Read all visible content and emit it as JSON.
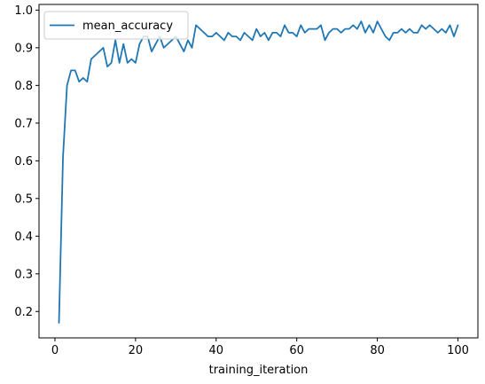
{
  "chart_data": {
    "type": "line",
    "title": "",
    "xlabel": "training_iteration",
    "ylabel": "",
    "xlim": [
      -3.95,
      104.95
    ],
    "ylim": [
      0.13,
      1.015
    ],
    "xticks": [
      0,
      20,
      40,
      60,
      80,
      100
    ],
    "yticks": [
      0.2,
      0.3,
      0.4,
      0.5,
      0.6,
      0.7,
      0.8,
      0.9,
      1.0
    ],
    "ytick_labels": [
      "0.2",
      "0.3",
      "0.4",
      "0.5",
      "0.6",
      "0.7",
      "0.8",
      "0.9",
      "1.0"
    ],
    "xtick_labels": [
      "0",
      "20",
      "40",
      "60",
      "80",
      "100"
    ],
    "grid": false,
    "legend": "top-left",
    "series": [
      {
        "name": "mean_accuracy",
        "color": "#1f77b4",
        "x": [
          1,
          2,
          3,
          4,
          5,
          6,
          7,
          8,
          9,
          10,
          11,
          12,
          13,
          14,
          15,
          16,
          17,
          18,
          19,
          20,
          21,
          22,
          23,
          24,
          25,
          26,
          27,
          28,
          29,
          30,
          31,
          32,
          33,
          34,
          35,
          36,
          37,
          38,
          39,
          40,
          41,
          42,
          43,
          44,
          45,
          46,
          47,
          48,
          49,
          50,
          51,
          52,
          53,
          54,
          55,
          56,
          57,
          58,
          59,
          60,
          61,
          62,
          63,
          64,
          65,
          66,
          67,
          68,
          69,
          70,
          71,
          72,
          73,
          74,
          75,
          76,
          77,
          78,
          79,
          80,
          81,
          82,
          83,
          84,
          85,
          86,
          87,
          88,
          89,
          90,
          91,
          92,
          93,
          94,
          95,
          96,
          97,
          98,
          99,
          100
        ],
        "values": [
          0.17,
          0.61,
          0.8,
          0.84,
          0.84,
          0.81,
          0.82,
          0.81,
          0.87,
          0.88,
          0.89,
          0.9,
          0.85,
          0.86,
          0.92,
          0.86,
          0.91,
          0.86,
          0.87,
          0.86,
          0.91,
          0.93,
          0.93,
          0.89,
          0.91,
          0.93,
          0.9,
          0.91,
          0.92,
          0.93,
          0.91,
          0.89,
          0.92,
          0.9,
          0.96,
          0.95,
          0.94,
          0.93,
          0.93,
          0.94,
          0.93,
          0.92,
          0.94,
          0.93,
          0.93,
          0.92,
          0.94,
          0.93,
          0.92,
          0.95,
          0.93,
          0.94,
          0.92,
          0.94,
          0.94,
          0.93,
          0.96,
          0.94,
          0.94,
          0.93,
          0.96,
          0.94,
          0.95,
          0.95,
          0.95,
          0.96,
          0.92,
          0.94,
          0.95,
          0.95,
          0.94,
          0.95,
          0.95,
          0.96,
          0.95,
          0.97,
          0.94,
          0.96,
          0.94,
          0.97,
          0.95,
          0.93,
          0.92,
          0.94,
          0.94,
          0.95,
          0.94,
          0.95,
          0.94,
          0.94,
          0.96,
          0.95,
          0.96,
          0.95,
          0.94,
          0.95,
          0.94,
          0.96,
          0.93,
          0.96
        ]
      }
    ]
  }
}
